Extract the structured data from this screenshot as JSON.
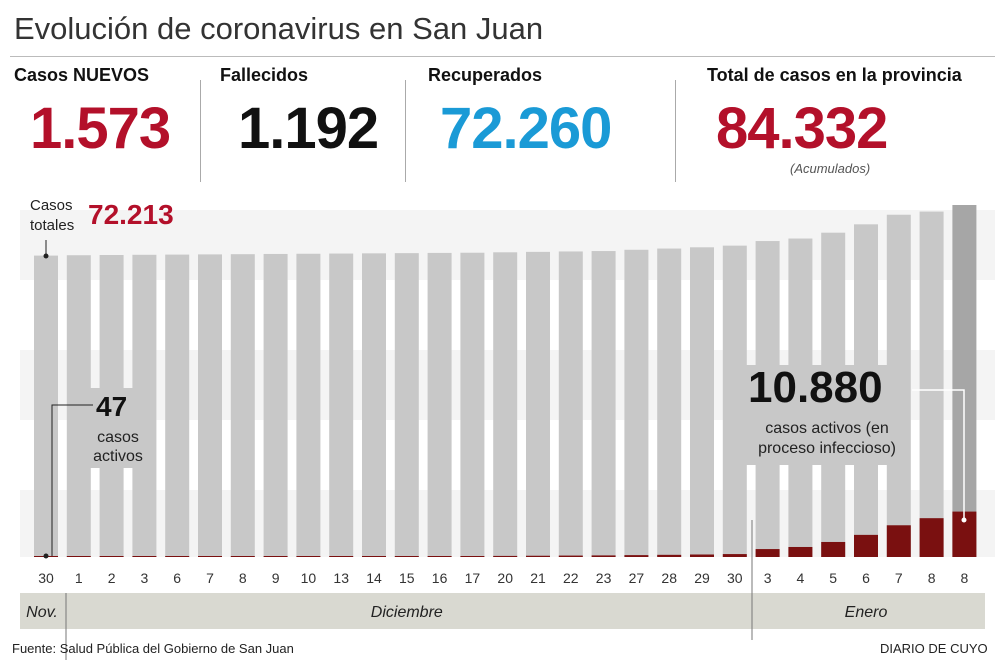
{
  "chart_data": {
    "type": "bar",
    "title": "Evolución de coronavirus en San Juan",
    "categories": [
      "30",
      "1",
      "2",
      "3",
      "6",
      "7",
      "8",
      "9",
      "10",
      "13",
      "14",
      "15",
      "16",
      "17",
      "20",
      "21",
      "22",
      "23",
      "27",
      "28",
      "29",
      "30",
      "3",
      "4",
      "5",
      "6",
      "7",
      "8",
      "8"
    ],
    "months": [
      {
        "label": "Nov.",
        "from": 0,
        "to": 0
      },
      {
        "label": "Diciembre",
        "from": 1,
        "to": 21
      },
      {
        "label": "Enero",
        "from": 22,
        "to": 28
      }
    ],
    "series": [
      {
        "name": "Casos totales",
        "color": "#c8c8c8",
        "values": [
          72213,
          72300,
          72350,
          72400,
          72450,
          72500,
          72550,
          72600,
          72650,
          72700,
          72750,
          72800,
          72850,
          72900,
          73000,
          73100,
          73200,
          73300,
          73600,
          73900,
          74200,
          74600,
          75700,
          76300,
          77700,
          79700,
          82000,
          82759,
          84332
        ]
      },
      {
        "name": "casos activos",
        "color": "#7a1010",
        "values": [
          47,
          60,
          70,
          80,
          90,
          100,
          110,
          120,
          130,
          150,
          170,
          190,
          210,
          230,
          260,
          300,
          340,
          380,
          450,
          520,
          600,
          700,
          1900,
          2400,
          3600,
          5300,
          7600,
          9300,
          10880
        ]
      }
    ],
    "ylim": [
      0,
      86000
    ],
    "annotations": {
      "total_label": "Casos\ntotales",
      "total_value": "72.213",
      "active_start_value": "47",
      "active_start_label": "casos\nactivos",
      "active_end_value": "10.880",
      "active_end_label": "casos activos (en\nproceso infeccioso)"
    }
  },
  "header": {
    "title": "Evolución de coronavirus en San Juan"
  },
  "stats": [
    {
      "label": "Casos NUEVOS",
      "value": "1.573",
      "color": "#b3102a"
    },
    {
      "label": "Fallecidos",
      "value": "1.192",
      "color": "#111111"
    },
    {
      "label": "Recuperados",
      "value": "72.260",
      "color": "#1a9ad6"
    },
    {
      "label": "Total de casos en la provincia",
      "value": "84.332",
      "color": "#b3102a",
      "note": "(Acumulados)"
    }
  ],
  "footer": {
    "source": "Fuente: Salud Pública del Gobierno de San Juan",
    "brand": "DIARIO DE CUYO"
  }
}
